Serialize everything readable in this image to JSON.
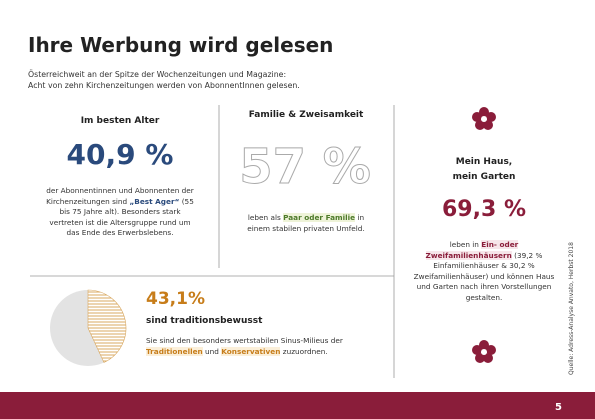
{
  "header": {
    "title": "Ihre Werbung wird gelesen",
    "intro": [
      "Österreichweit an der Spitze der Wochenzeitungen und Magazine:",
      "Acht von zehn Kirchenzeitungen werden von AbonnentInnen gelesen."
    ]
  },
  "left": {
    "heading": "Im besten Alter",
    "stat": "40,9 %",
    "body": [
      "der Abonnentinnen und Abonnenten der Kirchenzeitungen sind ",
      "„Best Ager“",
      " (55 bis 75 Jahre alt). Besonders stark vertreten ist die Altersgruppe rund um das Ende des Erwerbslebens."
    ]
  },
  "middle": {
    "heading": "Familie & Zweisamkeit",
    "stat": "57 %",
    "body": [
      "leben als ",
      "Paar oder Familie",
      " in einem stabilen privaten Umfeld."
    ]
  },
  "right": {
    "heading": [
      "Mein Haus,",
      "mein Garten"
    ],
    "stat": "69,3 %",
    "body": [
      "leben in ",
      "Ein- oder Zweifamilienhäusern",
      " (39,2 % Einfamilienhäuser & 30,2 % Zweifamilienhäuser) und können Haus und Garten nach ihren Vorstellungen gestalten."
    ]
  },
  "bottom": {
    "pie": {
      "value": 43.1,
      "label": "43,1%"
    },
    "heading": "sind traditionsbewusst",
    "body": [
      "Sie sind den besonders wertstabilen Sinus-Milieus der ",
      "Traditionellen",
      " und ",
      "Konservativen",
      " zuzuordnen."
    ]
  },
  "source": "Quelle: Adress-Analyse Anvato, Herbst 2018",
  "page_number": "5"
}
